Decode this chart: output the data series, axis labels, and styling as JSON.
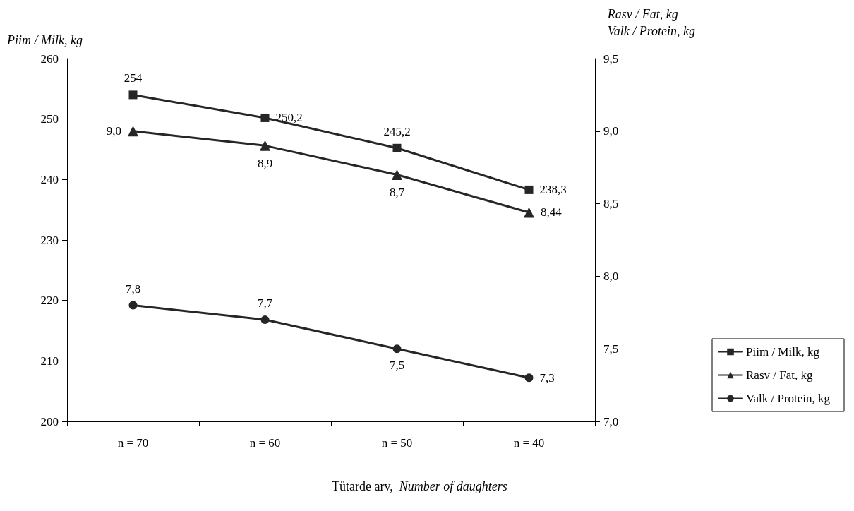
{
  "chart_data": {
    "type": "line",
    "xlabel": "Tütarde arv,  Number of daughters",
    "ylabel": "Piim / Milk, kg",
    "y2label": "Rasv / Fat, kg\nValk / Protein, kg",
    "categories": [
      "n = 70",
      "n = 60",
      "n = 50",
      "n = 40"
    ],
    "series": [
      {
        "name": "Piim / Milk, kg",
        "color": "#262626",
        "marker": "square",
        "values": [
          254,
          250.2,
          245.2,
          238.3
        ],
        "value_labels": [
          "254",
          "250,2",
          "245,2",
          "238,3"
        ]
      },
      {
        "name": "Rasv / Fat, kg",
        "color": "#262626",
        "marker": "triangle",
        "axis": "y2",
        "values": [
          9.0,
          8.9,
          8.7,
          8.44
        ],
        "value_labels": [
          "9,0",
          "8,9",
          "8,7",
          "8,44"
        ]
      },
      {
        "name": "Valk / Protein, kg",
        "color": "#262626",
        "marker": "circle",
        "axis": "y2",
        "values": [
          7.8,
          7.7,
          7.5,
          7.3
        ],
        "value_labels": [
          "7,8",
          "7,7",
          "7,5",
          "7,3"
        ]
      }
    ],
    "ylim": [
      200,
      260
    ],
    "yticks": [
      200,
      210,
      220,
      230,
      240,
      250,
      260
    ],
    "y2lim": [
      7.0,
      9.5
    ],
    "y2ticks": [
      {
        "value": 7.0,
        "label": "7,0"
      },
      {
        "value": 7.5,
        "label": "7,5"
      },
      {
        "value": 8.0,
        "label": "8,0"
      },
      {
        "value": 8.5,
        "label": "8,5"
      },
      {
        "value": 9.0,
        "label": "9,0"
      },
      {
        "value": 9.5,
        "label": "9,5"
      }
    ],
    "grid": false,
    "legend": "right",
    "line_style": "solid"
  }
}
